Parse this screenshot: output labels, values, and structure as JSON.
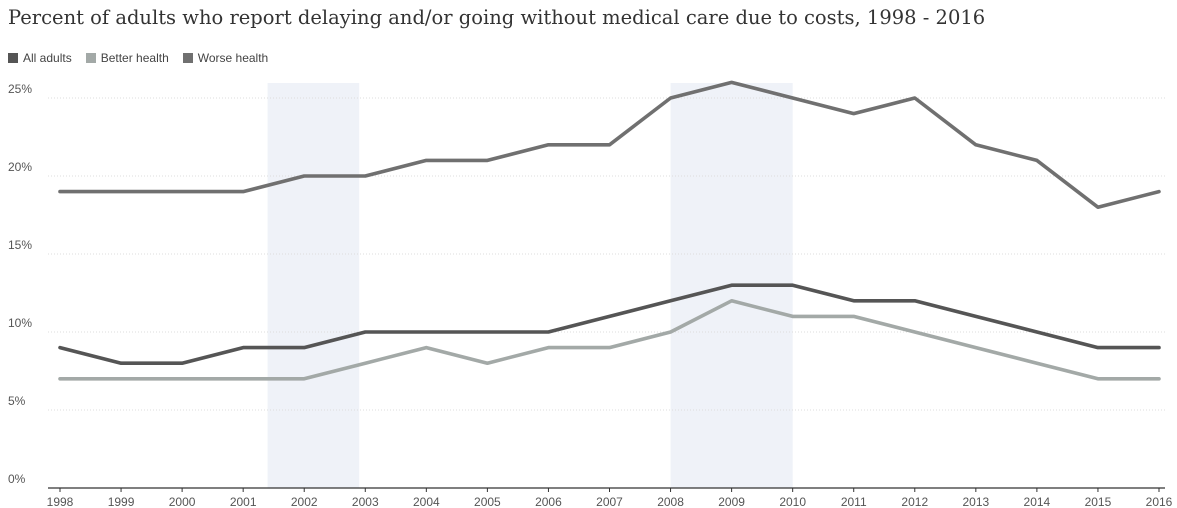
{
  "chart_data": {
    "type": "line",
    "title": "Percent of adults who report delaying and/or going without medical care due to costs, 1998 - 2016",
    "xlabel": "",
    "ylabel": "",
    "x": [
      "1998",
      "1999",
      "2000",
      "2001",
      "2002",
      "2003",
      "2004",
      "2005",
      "2006",
      "2007",
      "2008",
      "2009",
      "2010",
      "2011",
      "2012",
      "2013",
      "2014",
      "2015",
      "2016"
    ],
    "ylim": [
      0,
      26
    ],
    "yticks": [
      0,
      5,
      10,
      15,
      20,
      25
    ],
    "ytick_labels": [
      "0%",
      "5%",
      "10%",
      "15%",
      "20%",
      "25%"
    ],
    "grid": true,
    "legend_position": "top-left",
    "shaded_ranges": [
      [
        "2001.4",
        "2002.9"
      ],
      [
        "2008",
        "2010"
      ]
    ],
    "series": [
      {
        "name": "All adults",
        "color": "#555555",
        "values": [
          9,
          8,
          8,
          9,
          9,
          10,
          10,
          10,
          10,
          11,
          12,
          13,
          13,
          12,
          12,
          11,
          10,
          9,
          9
        ]
      },
      {
        "name": "Better health",
        "color": "#a3a9a7",
        "values": [
          7,
          7,
          7,
          7,
          7,
          8,
          9,
          8,
          9,
          9,
          10,
          12,
          11,
          11,
          10,
          9,
          8,
          7,
          7
        ]
      },
      {
        "name": "Worse health",
        "color": "#707070",
        "values": [
          19,
          19,
          19,
          19,
          20,
          20,
          21,
          21,
          22,
          22,
          25,
          26,
          25,
          24,
          25,
          22,
          21,
          18,
          19
        ]
      }
    ]
  }
}
